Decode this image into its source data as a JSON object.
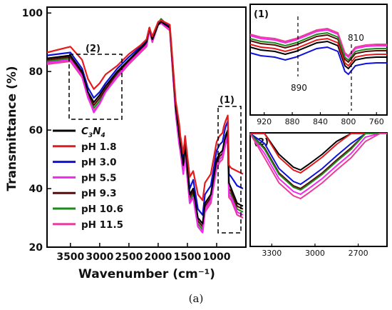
{
  "chart_data": [
    {
      "type": "line",
      "xlabel": "Wavenumber (cm⁻¹)",
      "ylabel": "Transmittance (%)",
      "xlim": [
        3900,
        500
      ],
      "ylim": [
        20,
        102
      ],
      "xticks": [
        "3500",
        "3000",
        "2500",
        "2000",
        "1500",
        "1000"
      ],
      "yticks": [
        "20",
        "40",
        "60",
        "80",
        "100"
      ],
      "annotations": [
        "(1)",
        "(2)"
      ],
      "legend_position": "left",
      "series": [
        {
          "name": "C3N4",
          "color": "#000000",
          "x": [
            3900,
            3500,
            3300,
            3200,
            3100,
            3000,
            2900,
            2700,
            2500,
            2300,
            2200,
            2150,
            2100,
            2000,
            1950,
            1800,
            1700,
            1640,
            1620,
            1570,
            1540,
            1460,
            1400,
            1320,
            1240,
            1200,
            1100,
            1000,
            950,
            900,
            880,
            850,
            810,
            790,
            750,
            650,
            550
          ],
          "y": [
            84.5,
            85.5,
            80,
            73,
            69.5,
            72,
            75,
            80,
            84,
            88,
            90,
            95,
            91,
            96,
            97,
            95,
            68,
            58,
            55,
            48,
            55,
            38,
            40,
            30,
            28,
            35,
            38,
            50,
            52,
            53,
            55,
            58,
            60,
            42,
            40,
            35,
            34
          ]
        },
        {
          "name": "pH 1.8",
          "color": "#e41a1c",
          "x": [
            3900,
            3500,
            3300,
            3200,
            3100,
            3000,
            2900,
            2700,
            2500,
            2300,
            2200,
            2150,
            2100,
            2000,
            1950,
            1800,
            1700,
            1640,
            1620,
            1570,
            1540,
            1460,
            1400,
            1320,
            1240,
            1200,
            1100,
            1000,
            950,
            900,
            880,
            850,
            810,
            790,
            750,
            650,
            550
          ],
          "y": [
            86.5,
            88.5,
            84,
            77.5,
            74,
            76,
            79,
            82,
            86,
            89,
            91,
            95,
            92,
            97,
            97.5,
            96,
            70,
            62,
            58,
            52,
            58,
            44,
            46,
            38,
            36,
            42,
            45,
            56,
            58,
            59,
            61,
            63,
            65,
            48,
            47,
            46,
            45
          ]
        },
        {
          "name": "pH 3.0",
          "color": "#1010dd",
          "x": [
            3900,
            3500,
            3300,
            3200,
            3100,
            3000,
            2900,
            2700,
            2500,
            2300,
            2200,
            2150,
            2100,
            2000,
            1950,
            1800,
            1700,
            1640,
            1620,
            1570,
            1540,
            1460,
            1400,
            1320,
            1240,
            1200,
            1100,
            1000,
            950,
            900,
            880,
            850,
            810,
            790,
            750,
            650,
            550
          ],
          "y": [
            85.5,
            86.5,
            81,
            74.5,
            71,
            73,
            76,
            81,
            85,
            88.5,
            90.5,
            95,
            91.5,
            96.5,
            97,
            95.5,
            69,
            60,
            56,
            50,
            56,
            40,
            43,
            33,
            31,
            38,
            41,
            53,
            55,
            56,
            58,
            61,
            63,
            45,
            44,
            41,
            40
          ]
        },
        {
          "name": "pH 5.5",
          "color": "#f028f0",
          "x": [
            3900,
            3500,
            3300,
            3200,
            3100,
            3000,
            2900,
            2700,
            2500,
            2300,
            2200,
            2150,
            2100,
            2000,
            1950,
            1800,
            1700,
            1640,
            1620,
            1570,
            1540,
            1460,
            1400,
            1320,
            1240,
            1200,
            1100,
            1000,
            950,
            900,
            880,
            850,
            810,
            790,
            750,
            650,
            550
          ],
          "y": [
            83,
            84,
            78.5,
            71.5,
            66,
            69,
            73,
            78.5,
            83,
            87,
            89,
            94,
            90.5,
            96,
            96.5,
            94.5,
            66,
            55,
            53,
            45,
            52,
            35,
            37,
            27,
            25,
            33,
            36,
            48,
            50,
            51,
            53,
            56,
            58,
            38,
            37,
            32,
            31
          ]
        },
        {
          "name": "pH 9.3",
          "color": "#5a0a0a",
          "x": [
            3900,
            3500,
            3300,
            3200,
            3100,
            3000,
            2900,
            2700,
            2500,
            2300,
            2200,
            2150,
            2100,
            2000,
            1950,
            1800,
            1700,
            1640,
            1620,
            1570,
            1540,
            1460,
            1400,
            1320,
            1240,
            1200,
            1100,
            1000,
            950,
            900,
            880,
            850,
            810,
            790,
            750,
            650,
            550
          ],
          "y": [
            84,
            85,
            79.5,
            72.5,
            68.5,
            71,
            74,
            79.5,
            83.5,
            87.5,
            89.5,
            94.5,
            91,
            96,
            97,
            95,
            67,
            57,
            54,
            47,
            54,
            37,
            39,
            29,
            27,
            34,
            37,
            49,
            51,
            52,
            54,
            57,
            59,
            40,
            39,
            34,
            33
          ]
        },
        {
          "name": "pH 10.6",
          "color": "#1c8a1c",
          "x": [
            3900,
            3500,
            3300,
            3200,
            3100,
            3000,
            2900,
            2700,
            2500,
            2300,
            2200,
            2150,
            2100,
            2000,
            1950,
            1800,
            1700,
            1640,
            1620,
            1570,
            1540,
            1460,
            1400,
            1320,
            1240,
            1200,
            1100,
            1000,
            950,
            900,
            880,
            850,
            810,
            790,
            750,
            650,
            550
          ],
          "y": [
            83.5,
            84.5,
            79,
            72,
            67.5,
            70,
            73.5,
            79,
            83,
            87,
            89,
            94.5,
            91,
            96.5,
            98,
            95,
            66.5,
            56,
            53.5,
            46,
            53,
            36,
            38,
            28,
            26,
            33,
            36,
            48,
            50,
            51,
            53,
            56,
            58,
            39,
            38,
            33,
            32
          ]
        },
        {
          "name": "pH 11.5",
          "color": "#e83e9a",
          "x": [
            3900,
            3500,
            3300,
            3200,
            3100,
            3000,
            2900,
            2700,
            2500,
            2300,
            2200,
            2150,
            2100,
            2000,
            1950,
            1800,
            1700,
            1640,
            1620,
            1570,
            1540,
            1460,
            1400,
            1320,
            1240,
            1200,
            1100,
            1000,
            950,
            900,
            880,
            850,
            810,
            790,
            750,
            650,
            550
          ],
          "y": [
            82.5,
            83.5,
            78,
            71,
            66.5,
            69,
            73,
            78,
            82.5,
            86.5,
            88.5,
            94,
            90,
            96,
            96.5,
            94,
            65.5,
            55,
            52.5,
            45,
            52,
            35,
            37,
            27,
            25,
            32,
            35,
            47,
            49,
            50,
            52,
            55,
            57,
            37,
            36,
            31,
            30
          ]
        }
      ]
    },
    {
      "type": "line",
      "panel_label": "(1)",
      "xlim": [
        940,
        745
      ],
      "xticks": [
        "920",
        "880",
        "840",
        "800",
        "760"
      ],
      "annotations": [
        "890",
        "810"
      ]
    },
    {
      "type": "line",
      "panel_label": "(2)",
      "xlim": [
        3450,
        2500
      ],
      "xticks": [
        "3300",
        "3000",
        "2700"
      ]
    }
  ],
  "caption": "(a)"
}
